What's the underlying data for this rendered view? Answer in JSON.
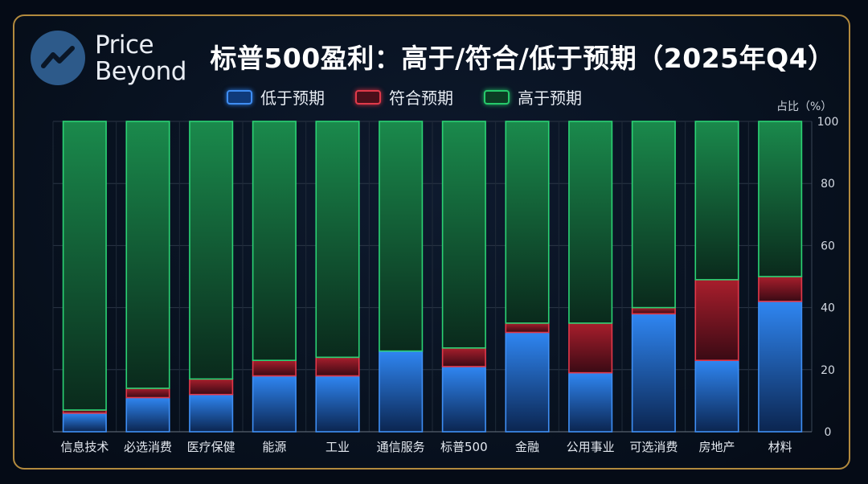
{
  "brand": {
    "line1": "Price",
    "line2": "Beyond"
  },
  "header": {
    "title": "标普500盈利：高于/符合/低于预期（2025年Q4）"
  },
  "legend": {
    "below": "低于预期",
    "meet": "符合预期",
    "above": "高于预期"
  },
  "axis": {
    "unit": "占比（%）"
  },
  "colors": {
    "below": "#2a7ee8",
    "meet": "#d6303f",
    "above": "#21b864",
    "frame": "#b28a3e"
  },
  "chart_data": {
    "type": "bar",
    "stacked": true,
    "title": "标普500盈利：高于/符合/低于预期（2025年Q4）",
    "ylabel": "占比（%）",
    "ylim": [
      0,
      100
    ],
    "yticks": [
      0,
      20,
      40,
      60,
      80,
      100
    ],
    "grid": true,
    "legend": "top",
    "categories": [
      "信息技术",
      "必选消费",
      "医疗保健",
      "能源",
      "工业",
      "通信服务",
      "标普500",
      "金融",
      "公用事业",
      "可选消费",
      "房地产",
      "材料"
    ],
    "series": [
      {
        "name": "低于预期",
        "values": [
          6,
          11,
          12,
          18,
          18,
          26,
          21,
          32,
          19,
          38,
          23,
          42
        ]
      },
      {
        "name": "符合预期",
        "values": [
          1,
          3,
          5,
          5,
          6,
          0,
          6,
          3,
          16,
          2,
          26,
          8
        ]
      },
      {
        "name": "高于预期",
        "values": [
          93,
          86,
          83,
          77,
          76,
          74,
          73,
          65,
          65,
          60,
          51,
          50
        ]
      }
    ]
  }
}
